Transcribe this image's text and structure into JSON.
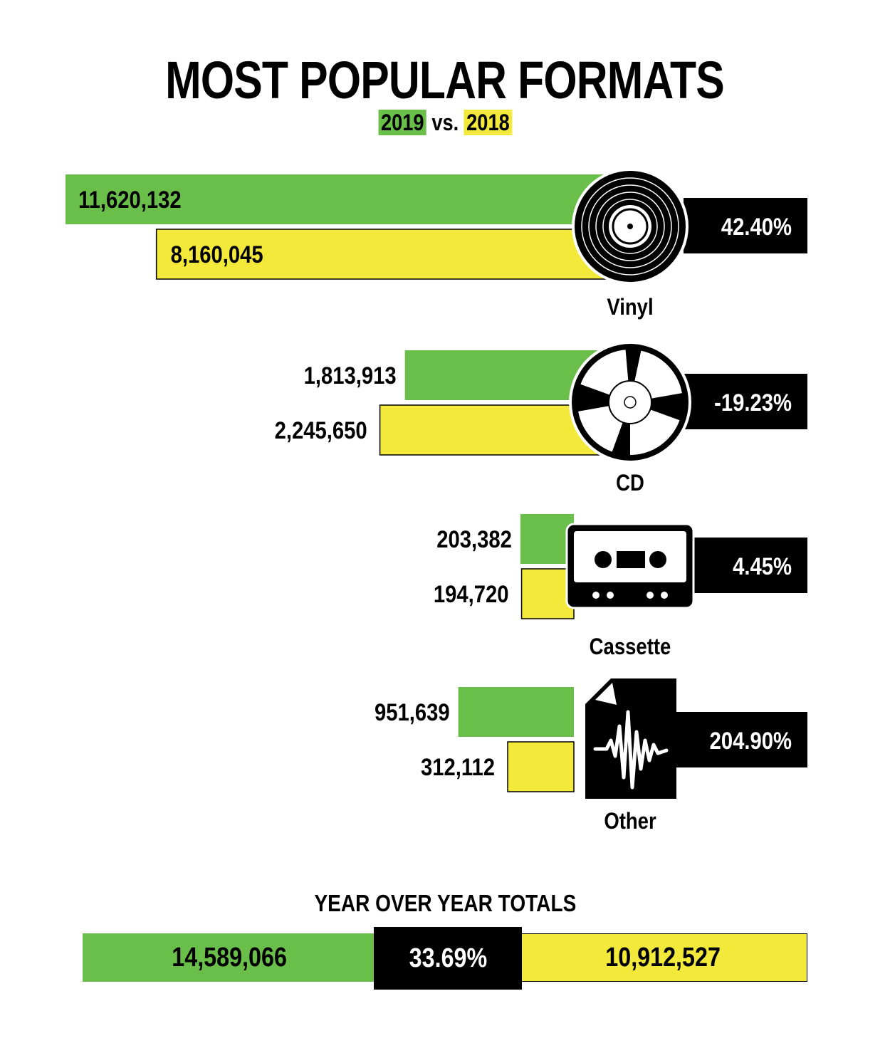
{
  "title": "MOST POPULAR FORMATS",
  "subtitle": {
    "year_a": "2019",
    "vs": "vs.",
    "year_b": "2018"
  },
  "colors": {
    "year_2019": "#6abf4b",
    "year_2018": "#f2e93a",
    "change_box": "#000000"
  },
  "chart_data": {
    "type": "bar",
    "orientation": "horizontal",
    "categories": [
      "Vinyl",
      "CD",
      "Cassette",
      "Other"
    ],
    "category_icons": [
      "vinyl-record-icon",
      "cd-disc-icon",
      "cassette-icon",
      "audio-file-icon"
    ],
    "series": [
      {
        "name": "2019",
        "values": [
          11620132,
          1813913,
          203382,
          951639
        ],
        "labels": [
          "11,620,132",
          "1,813,913",
          "203,382",
          "951,639"
        ]
      },
      {
        "name": "2018",
        "values": [
          8160045,
          2245650,
          194720,
          312112
        ],
        "labels": [
          "8,160,045",
          "2,245,650",
          "194,720",
          "312,112"
        ]
      }
    ],
    "change": [
      "42.40%",
      "-19.23%",
      "4.45%",
      "204.90%"
    ]
  },
  "totals": {
    "title": "YEAR OVER YEAR TOTALS",
    "total_2019": "14,589,066",
    "change": "33.69%",
    "total_2018": "10,912,527"
  }
}
